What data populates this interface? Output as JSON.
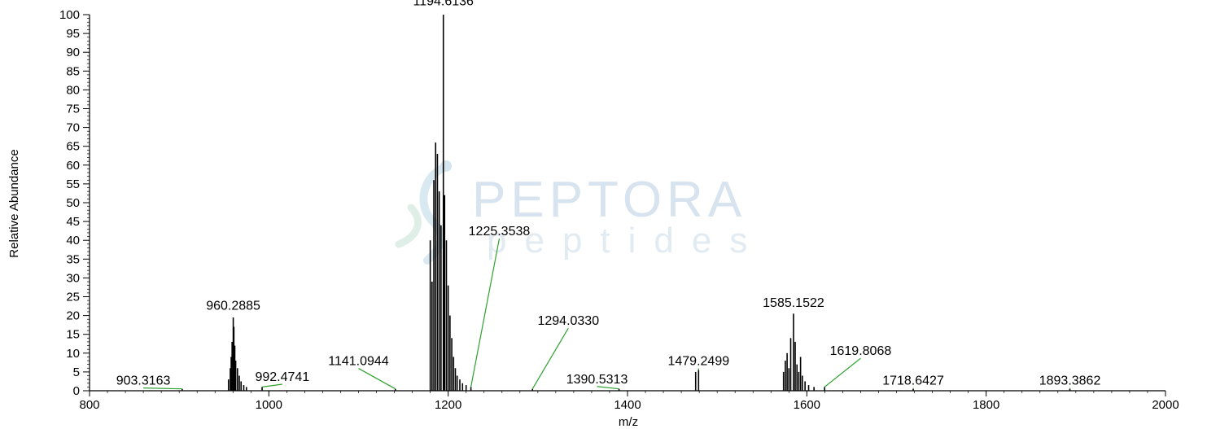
{
  "watermark": {
    "main": "PEPTORA",
    "sub": "peptides"
  },
  "chart_data": {
    "type": "line",
    "xlabel": "m/z",
    "ylabel": "Relative Abundance",
    "xlim": [
      800,
      2000
    ],
    "ylim": [
      0,
      100
    ],
    "xticks": [
      800,
      1000,
      1200,
      1400,
      1600,
      1800,
      2000
    ],
    "yticks": [
      0,
      5,
      10,
      15,
      20,
      25,
      30,
      35,
      40,
      45,
      50,
      55,
      60,
      65,
      70,
      75,
      80,
      85,
      90,
      95,
      100
    ],
    "grid": false,
    "peaks": [
      {
        "mz": 955,
        "intensity": 3
      },
      {
        "mz": 957,
        "intensity": 6
      },
      {
        "mz": 958,
        "intensity": 9
      },
      {
        "mz": 959,
        "intensity": 13
      },
      {
        "mz": 960.2885,
        "intensity": 19.5
      },
      {
        "mz": 961,
        "intensity": 17
      },
      {
        "mz": 962,
        "intensity": 12
      },
      {
        "mz": 963,
        "intensity": 8
      },
      {
        "mz": 965,
        "intensity": 6
      },
      {
        "mz": 967,
        "intensity": 4
      },
      {
        "mz": 969,
        "intensity": 2.5
      },
      {
        "mz": 972,
        "intensity": 1.5
      },
      {
        "mz": 975,
        "intensity": 1
      },
      {
        "mz": 1180,
        "intensity": 40
      },
      {
        "mz": 1182,
        "intensity": 29
      },
      {
        "mz": 1184,
        "intensity": 56
      },
      {
        "mz": 1186,
        "intensity": 66
      },
      {
        "mz": 1188,
        "intensity": 63
      },
      {
        "mz": 1190,
        "intensity": 53
      },
      {
        "mz": 1192,
        "intensity": 44
      },
      {
        "mz": 1194.6136,
        "intensity": 100
      },
      {
        "mz": 1196,
        "intensity": 52
      },
      {
        "mz": 1198,
        "intensity": 40
      },
      {
        "mz": 1200,
        "intensity": 28
      },
      {
        "mz": 1202,
        "intensity": 20
      },
      {
        "mz": 1204,
        "intensity": 14
      },
      {
        "mz": 1206,
        "intensity": 9
      },
      {
        "mz": 1208,
        "intensity": 6
      },
      {
        "mz": 1210,
        "intensity": 4
      },
      {
        "mz": 1213,
        "intensity": 3
      },
      {
        "mz": 1216,
        "intensity": 2
      },
      {
        "mz": 1220,
        "intensity": 1.5
      },
      {
        "mz": 1225.3538,
        "intensity": 1
      },
      {
        "mz": 1476,
        "intensity": 5
      },
      {
        "mz": 1479.2499,
        "intensity": 5.5
      },
      {
        "mz": 1574,
        "intensity": 5
      },
      {
        "mz": 1576,
        "intensity": 8
      },
      {
        "mz": 1578,
        "intensity": 10
      },
      {
        "mz": 1580,
        "intensity": 6
      },
      {
        "mz": 1582,
        "intensity": 14
      },
      {
        "mz": 1585.1522,
        "intensity": 20.5
      },
      {
        "mz": 1587,
        "intensity": 13
      },
      {
        "mz": 1589,
        "intensity": 7
      },
      {
        "mz": 1591,
        "intensity": 5
      },
      {
        "mz": 1593,
        "intensity": 9
      },
      {
        "mz": 1595,
        "intensity": 4
      },
      {
        "mz": 1598,
        "intensity": 2.5
      },
      {
        "mz": 1602,
        "intensity": 1.5
      },
      {
        "mz": 1608,
        "intensity": 1
      },
      {
        "mz": 1619.8068,
        "intensity": 1
      },
      {
        "mz": 903.3163,
        "intensity": 0.5
      },
      {
        "mz": 992.4741,
        "intensity": 1
      },
      {
        "mz": 1141.0944,
        "intensity": 0.5
      },
      {
        "mz": 1294.033,
        "intensity": 0.5
      },
      {
        "mz": 1390.5313,
        "intensity": 0.5
      },
      {
        "mz": 1718.6427,
        "intensity": 0.5
      },
      {
        "mz": 1893.3862,
        "intensity": 0.5
      }
    ],
    "annotations": [
      {
        "text": "1194.6136",
        "mz": 1194.6136,
        "intensity": 100,
        "label_x": 1194.6136,
        "label_y": 102.5,
        "leader": false
      },
      {
        "text": "960.2885",
        "mz": 960.2885,
        "intensity": 19.5,
        "label_x": 960.2885,
        "label_y": 21.5,
        "leader": false
      },
      {
        "text": "1585.1522",
        "mz": 1585.1522,
        "intensity": 20.5,
        "label_x": 1585.1522,
        "label_y": 22.3,
        "leader": false
      },
      {
        "text": "1225.3538",
        "mz": 1225.3538,
        "intensity": 1,
        "label_x": 1257,
        "label_y": 41.3,
        "leader": true
      },
      {
        "text": "1294.0330",
        "mz": 1294.033,
        "intensity": 0.5,
        "label_x": 1334,
        "label_y": 17.5,
        "leader": true
      },
      {
        "text": "1141.0944",
        "mz": 1141.0944,
        "intensity": 0.5,
        "label_x": 1100,
        "label_y": 6.8,
        "leader": true
      },
      {
        "text": "1479.2499",
        "mz": 1479.2499,
        "intensity": 5.5,
        "label_x": 1479.2499,
        "label_y": 6.8,
        "leader": true
      },
      {
        "text": "1619.8068",
        "mz": 1619.8068,
        "intensity": 1,
        "label_x": 1660,
        "label_y": 9.5,
        "leader": true
      },
      {
        "text": "992.4741",
        "mz": 992.4741,
        "intensity": 1,
        "label_x": 1015,
        "label_y": 2.6,
        "leader": true
      },
      {
        "text": "903.3163",
        "mz": 903.3163,
        "intensity": 0.5,
        "label_x": 860,
        "label_y": 1.6,
        "leader": true
      },
      {
        "text": "1390.5313",
        "mz": 1390.5313,
        "intensity": 0.5,
        "label_x": 1366,
        "label_y": 2.0,
        "leader": true
      },
      {
        "text": "1718.6427",
        "mz": 1718.6427,
        "intensity": 0.5,
        "label_x": 1718.6427,
        "label_y": 1.6,
        "leader": true
      },
      {
        "text": "1893.3862",
        "mz": 1893.3862,
        "intensity": 0.5,
        "label_x": 1893.3862,
        "label_y": 1.6,
        "leader": true
      }
    ]
  }
}
